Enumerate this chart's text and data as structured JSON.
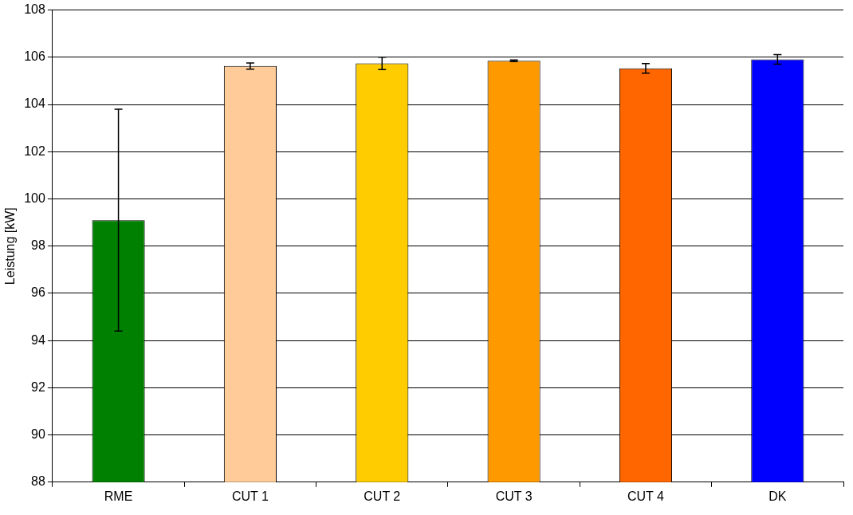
{
  "chart_data": {
    "type": "bar",
    "ylabel": "Leistung [kW]",
    "categories": [
      "RME",
      "CUT 1",
      "CUT 2",
      "CUT 3",
      "CUT 4",
      "DK"
    ],
    "values": [
      99.1,
      105.63,
      105.74,
      105.85,
      105.53,
      105.91
    ],
    "errors": [
      4.7,
      0.13,
      0.26,
      0.03,
      0.2,
      0.2
    ],
    "colors": [
      "#008000",
      "#ffcc99",
      "#ffcc00",
      "#ff9900",
      "#ff6600",
      "#0000ff"
    ],
    "ylim": [
      88,
      108
    ],
    "yticks": [
      88,
      90,
      92,
      94,
      96,
      98,
      100,
      102,
      104,
      106,
      108
    ],
    "grid": "y"
  }
}
